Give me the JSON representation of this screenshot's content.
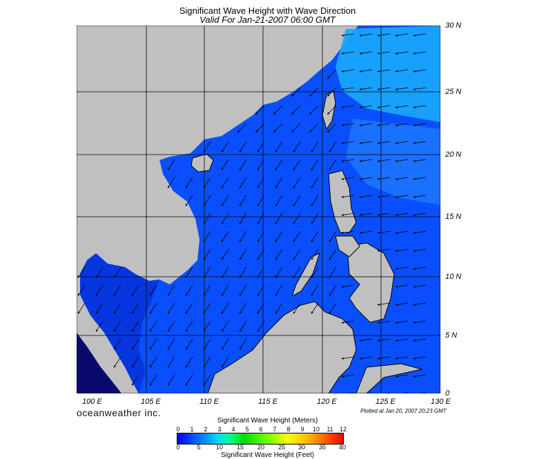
{
  "header": {
    "title": "Significant Wave Height with Wave Direction",
    "subtitle": "Valid For Jan-21-2007 06:00 GMT"
  },
  "map": {
    "lat_labels": [
      "30 N",
      "25 N",
      "20 N",
      "15 N",
      "10 N",
      "5 N",
      "0"
    ],
    "lon_labels": [
      "100 E",
      "105 E",
      "110 E",
      "115 E",
      "120 E",
      "125 E",
      "130 E"
    ],
    "land_color": "#c0c0c0",
    "ocean_color": "#0a4fff",
    "grid": true
  },
  "footer": {
    "brand": "oceanweather inc.",
    "plotted": "Plotted at Jan 20, 2007 20:23 GMT"
  },
  "colorbar": {
    "title_meters": "Significant Wave Height (Meters)",
    "title_feet": "Significant Wave Height (Feet)",
    "meter_ticks": [
      "0",
      "1",
      "2",
      "3",
      "4",
      "5",
      "6",
      "7",
      "8",
      "9",
      "10",
      "11",
      "12"
    ],
    "feet_ticks": [
      "0",
      "5",
      "10",
      "15",
      "20",
      "25",
      "30",
      "35",
      "40"
    ],
    "colors": [
      "#0000ff",
      "#0a55ff",
      "#009cff",
      "#00d8ff",
      "#00ff90",
      "#00dd00",
      "#5cff00",
      "#f5ff00",
      "#ffc000",
      "#ff6a00",
      "#ff0000"
    ]
  }
}
